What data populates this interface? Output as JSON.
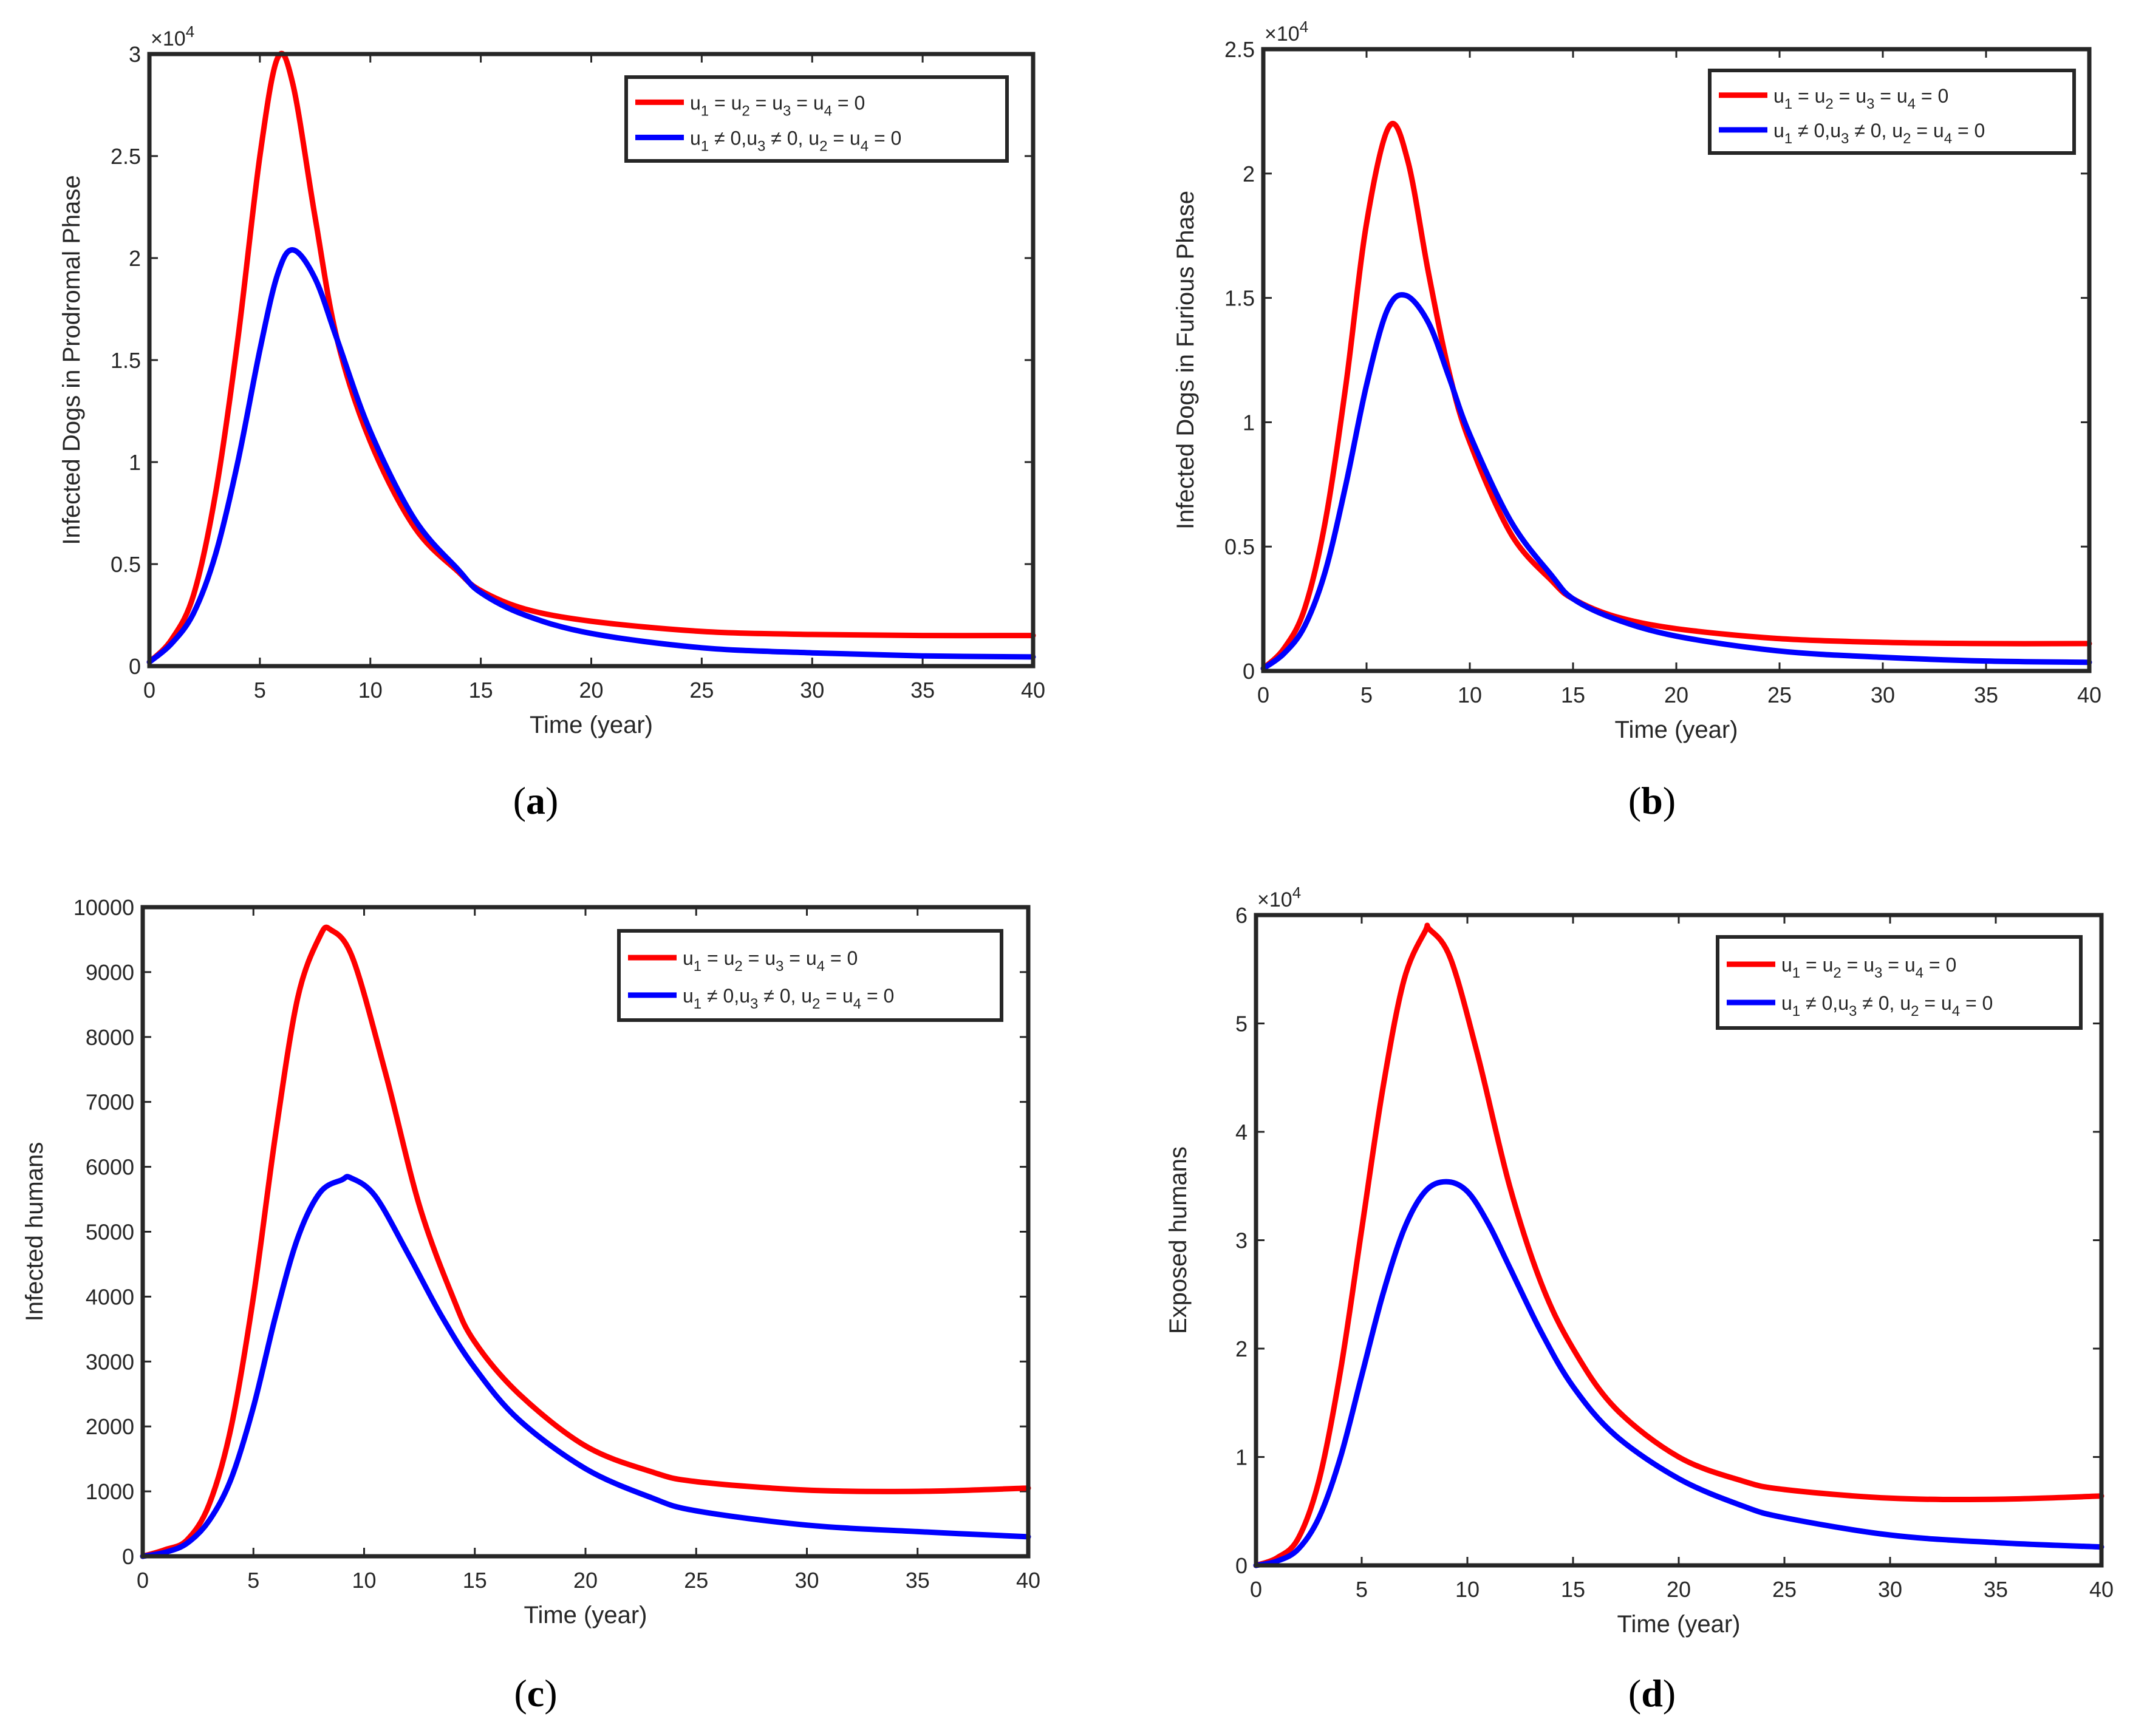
{
  "chart_data": [
    {
      "type": "line",
      "panel_label": "a",
      "xlabel": "Time (year)",
      "ylabel": "Infected Dogs in Prodromal Phase",
      "exponent_label": "×10",
      "exponent_power": "4",
      "xlim": [
        0,
        40
      ],
      "ylim": [
        0,
        30000
      ],
      "xticks": [
        0,
        5,
        10,
        15,
        20,
        25,
        30,
        35,
        40
      ],
      "yticks": [
        0,
        5000,
        10000,
        15000,
        20000,
        25000,
        30000
      ],
      "ytick_labels": [
        "0",
        "0.5",
        "1",
        "1.5",
        "2",
        "2.5",
        "3"
      ],
      "legend_position": "top-right",
      "series": [
        {
          "name": "u1 = u2 = u3 = u4 = 0",
          "color": "#ff0000",
          "x": [
            0,
            1,
            2,
            3,
            4,
            5,
            5.8,
            6.5,
            7.5,
            8.5,
            10,
            12,
            14,
            15,
            17,
            20,
            25,
            30,
            35,
            40
          ],
          "y": [
            200,
            1300,
            3500,
            8500,
            16000,
            25000,
            29800,
            28500,
            22000,
            16000,
            11000,
            6800,
            4600,
            3700,
            2800,
            2200,
            1700,
            1550,
            1500,
            1500
          ]
        },
        {
          "name": "u1 ≠ 0,u3 ≠ 0, u2 = u4 = 0",
          "color": "#0000ff",
          "x": [
            0,
            1,
            2,
            3,
            4,
            5,
            5.8,
            6.5,
            7.5,
            8.5,
            10,
            12,
            14,
            15,
            17,
            20,
            25,
            30,
            35,
            40
          ],
          "y": [
            200,
            1100,
            2600,
            5500,
            10000,
            15500,
            19200,
            20400,
            19000,
            16000,
            11500,
            7200,
            4700,
            3600,
            2500,
            1600,
            900,
            650,
            500,
            450
          ]
        }
      ]
    },
    {
      "type": "line",
      "panel_label": "b",
      "xlabel": "Time (year)",
      "ylabel": "Infected Dogs in Furious Phase",
      "exponent_label": "×10",
      "exponent_power": "4",
      "xlim": [
        0,
        40
      ],
      "ylim": [
        0,
        25000
      ],
      "xticks": [
        0,
        5,
        10,
        15,
        20,
        25,
        30,
        35,
        40
      ],
      "yticks": [
        0,
        5000,
        10000,
        15000,
        20000,
        25000
      ],
      "ytick_labels": [
        "0",
        "0.5",
        "1",
        "1.5",
        "2",
        "2.5"
      ],
      "legend_position": "top-right",
      "series": [
        {
          "name": "u1 = u2 = u3 = u4 = 0",
          "color": "#ff0000",
          "x": [
            0,
            1,
            2,
            3,
            4,
            5,
            6.1,
            7,
            8,
            9,
            10,
            12,
            14,
            15,
            17,
            20,
            25,
            30,
            35,
            40
          ],
          "y": [
            100,
            900,
            2500,
            6000,
            11500,
            18000,
            21900,
            20500,
            16000,
            12000,
            9200,
            5500,
            3600,
            2900,
            2200,
            1700,
            1300,
            1150,
            1100,
            1100
          ]
        },
        {
          "name": "u1 ≠ 0,u3 ≠ 0, u2 = u4 = 0",
          "color": "#0000ff",
          "x": [
            0,
            1,
            2,
            3,
            4,
            5,
            6,
            6.9,
            8,
            9,
            10,
            12,
            14,
            15,
            17,
            20,
            25,
            30,
            35,
            40
          ],
          "y": [
            100,
            700,
            1800,
            4000,
            7500,
            11500,
            14500,
            15100,
            14000,
            11800,
            9500,
            6000,
            3800,
            2900,
            2100,
            1400,
            800,
            550,
            400,
            350
          ]
        }
      ]
    },
    {
      "type": "line",
      "panel_label": "c",
      "xlabel": "Time (year)",
      "ylabel": "Infected humans",
      "exponent_label": "",
      "exponent_power": "",
      "xlim": [
        0,
        40
      ],
      "ylim": [
        0,
        10000
      ],
      "xticks": [
        0,
        5,
        10,
        15,
        20,
        25,
        30,
        35,
        40
      ],
      "yticks": [
        0,
        1000,
        2000,
        3000,
        4000,
        5000,
        6000,
        7000,
        8000,
        9000,
        10000
      ],
      "ytick_labels": [
        "0",
        "1000",
        "2000",
        "3000",
        "4000",
        "5000",
        "6000",
        "7000",
        "8000",
        "9000",
        "10000"
      ],
      "legend_position": "top-right",
      "series": [
        {
          "name": "u1 = u2 = u3 = u4 = 0",
          "color": "#ff0000",
          "x": [
            0,
            1,
            2,
            3,
            4,
            5,
            6,
            7,
            8,
            8.5,
            9.5,
            11,
            12.5,
            14,
            15,
            17,
            20,
            23,
            25,
            30,
            35,
            40
          ],
          "y": [
            0,
            100,
            250,
            800,
            2000,
            4000,
            6500,
            8600,
            9550,
            9650,
            9200,
            7400,
            5400,
            4000,
            3300,
            2500,
            1700,
            1300,
            1150,
            1020,
            1000,
            1050
          ]
        },
        {
          "name": "u1 ≠ 0,u3 ≠ 0, u2 = u4 = 0",
          "color": "#0000ff",
          "x": [
            0,
            1,
            2,
            3,
            4,
            5,
            6,
            7,
            8,
            9,
            9.4,
            10.5,
            12,
            13.5,
            15,
            17,
            20,
            23,
            25,
            30,
            35,
            40
          ],
          "y": [
            0,
            60,
            200,
            550,
            1200,
            2300,
            3700,
            4900,
            5600,
            5800,
            5830,
            5550,
            4650,
            3700,
            2900,
            2100,
            1350,
            900,
            700,
            480,
            380,
            300
          ]
        }
      ]
    },
    {
      "type": "line",
      "panel_label": "d",
      "xlabel": "Time (year)",
      "ylabel": "Exposed humans",
      "exponent_label": "×10",
      "exponent_power": "4",
      "xlim": [
        0,
        40
      ],
      "ylim": [
        0,
        60000
      ],
      "xticks": [
        0,
        5,
        10,
        15,
        20,
        25,
        30,
        35,
        40
      ],
      "yticks": [
        0,
        10000,
        20000,
        30000,
        40000,
        50000,
        60000
      ],
      "ytick_labels": [
        "0",
        "1",
        "2",
        "3",
        "4",
        "5",
        "6"
      ],
      "legend_position": "top-right",
      "series": [
        {
          "name": "u1 = u2 = u3 = u4 = 0",
          "color": "#ff0000",
          "x": [
            0,
            1,
            2,
            3,
            4,
            5,
            6,
            7,
            8,
            8.2,
            9.2,
            10.5,
            12,
            13.5,
            15,
            17,
            20,
            23,
            25,
            30,
            35,
            40
          ],
          "y": [
            0,
            700,
            2500,
            8000,
            18000,
            31000,
            44000,
            54000,
            58500,
            58700,
            56000,
            47000,
            35000,
            26000,
            20000,
            14500,
            10000,
            7800,
            7000,
            6200,
            6100,
            6400
          ]
        },
        {
          "name": "u1 ≠ 0,u3 ≠ 0, u2 = u4 = 0",
          "color": "#0000ff",
          "x": [
            0,
            1,
            2,
            3,
            4,
            5,
            6,
            7,
            8,
            9,
            10,
            11,
            12,
            13.5,
            15,
            17,
            20,
            23,
            25,
            30,
            35,
            40
          ],
          "y": [
            0,
            400,
            1500,
            4500,
            10000,
            17500,
            25000,
            31000,
            34500,
            35400,
            34500,
            31500,
            27500,
            21500,
            16500,
            12000,
            8000,
            5500,
            4400,
            2800,
            2100,
            1700
          ]
        }
      ]
    }
  ],
  "legend": {
    "entries": [
      {
        "base": "u",
        "subs": [
          "1",
          "2",
          "3",
          "4"
        ],
        "ops": [
          " = ",
          " = ",
          " = ",
          " = 0"
        ]
      },
      {
        "base": "u",
        "subs": [
          "1",
          "3",
          "2",
          "4"
        ],
        "ops": [
          " ≠ 0,",
          " ≠ 0, ",
          " = ",
          " = 0"
        ]
      }
    ]
  }
}
